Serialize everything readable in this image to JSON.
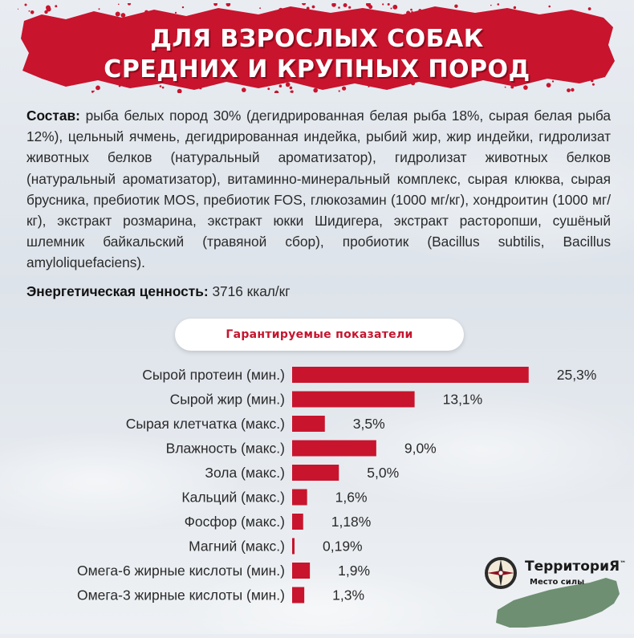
{
  "header": {
    "title_line1": "ДЛЯ ВЗРОСЛЫХ СОБАК",
    "title_line2": "СРЕДНИХ И КРУПНЫХ ПОРОД",
    "banner_color": "#c8142d"
  },
  "composition": {
    "label": "Состав:",
    "text": " рыба белых пород 30% (дегидрированная белая рыба 18%, сырая белая рыба 12%), цельный ячмень, дегидрированная индейка, рыбий жир, жир индейки, гидролизат животных белков (натуральный ароматизатор), гидролизат животных белков (натуральный ароматизатор), витаминно-минеральный комплекс, сырая клюква, сырая брусника, пребиотик MOS, пребиотик FOS, глюкозамин (1000 мг/кг), хондроитин (1000 мг/кг), экстракт розмарина, экстракт юкки Шидигера, экстракт расторопши, сушёный шлемник байкальский (травяной сбор), пробиотик (Bacillus subtilis, Bacillus amyloliquefaciens)."
  },
  "energy": {
    "label": "Энергетическая ценность:",
    "value": " 3716 ккал/кг"
  },
  "section_title": "Гарантируемые показатели",
  "chart_data": {
    "type": "bar",
    "orientation": "horizontal",
    "bar_color": "#c8142d",
    "categories": [
      "Сырой протеин (мин.)",
      "Сырой жир (мин.)",
      "Сырая клетчатка (макс.)",
      "Влажность (макс.)",
      "Зола (макс.)",
      "Кальций (макс.)",
      "Фосфор (макс.)",
      "Магний (макс.)",
      "Омега-6 жирные кислоты (мин.)",
      "Омега-3 жирные кислоты (мин.)"
    ],
    "values": [
      25.3,
      13.1,
      3.5,
      9.0,
      5.0,
      1.6,
      1.18,
      0.19,
      1.9,
      1.3
    ],
    "value_labels": [
      "25,3%",
      "13,1%",
      "3,5%",
      "9,0%",
      "5,0%",
      "1,6%",
      "1,18%",
      "0,19%",
      "1,9%",
      "1,3%"
    ],
    "unit": "%"
  },
  "logo": {
    "name": "ТерриториЯ",
    "tm": "™",
    "tagline": "Место силы",
    "map_color": "#6e8f72"
  }
}
